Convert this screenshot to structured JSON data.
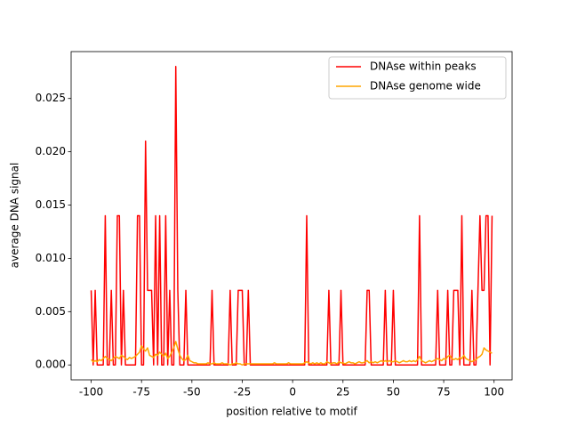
{
  "chart_data": {
    "type": "line",
    "xlabel": "position relative to motif",
    "ylabel": "average DNA signal",
    "x": [
      -100,
      -99,
      -98,
      -97,
      -96,
      -95,
      -94,
      -93,
      -92,
      -91,
      -90,
      -89,
      -88,
      -87,
      -86,
      -85,
      -84,
      -83,
      -82,
      -81,
      -80,
      -79,
      -78,
      -77,
      -76,
      -75,
      -74,
      -73,
      -72,
      -71,
      -70,
      -69,
      -68,
      -67,
      -66,
      -65,
      -64,
      -63,
      -62,
      -61,
      -60,
      -59,
      -58,
      -57,
      -56,
      -55,
      -54,
      -53,
      -52,
      -51,
      -50,
      -49,
      -48,
      -47,
      -46,
      -45,
      -44,
      -43,
      -42,
      -41,
      -40,
      -39,
      -38,
      -37,
      -36,
      -35,
      -34,
      -33,
      -32,
      -31,
      -30,
      -29,
      -28,
      -27,
      -26,
      -25,
      -24,
      -23,
      -22,
      -21,
      -20,
      -19,
      -18,
      -17,
      -16,
      -15,
      -14,
      -13,
      -12,
      -11,
      -10,
      -9,
      -8,
      -7,
      -6,
      -5,
      -4,
      -3,
      -2,
      -1,
      0,
      1,
      2,
      3,
      4,
      5,
      6,
      7,
      8,
      9,
      10,
      11,
      12,
      13,
      14,
      15,
      16,
      17,
      18,
      19,
      20,
      21,
      22,
      23,
      24,
      25,
      26,
      27,
      28,
      29,
      30,
      31,
      32,
      33,
      34,
      35,
      36,
      37,
      38,
      39,
      40,
      41,
      42,
      43,
      44,
      45,
      46,
      47,
      48,
      49,
      50,
      51,
      52,
      53,
      54,
      55,
      56,
      57,
      58,
      59,
      60,
      61,
      62,
      63,
      64,
      65,
      66,
      67,
      68,
      69,
      70,
      71,
      72,
      73,
      74,
      75,
      76,
      77,
      78,
      79,
      80,
      81,
      82,
      83,
      84,
      85,
      86,
      87,
      88,
      89,
      90,
      91,
      92,
      93,
      94,
      95,
      96,
      97,
      98,
      99
    ],
    "series": [
      {
        "name": "DNAse within peaks",
        "color": "#ff0000",
        "values": [
          0.007,
          0,
          0.007,
          0,
          0,
          0,
          0,
          0.014,
          0,
          0,
          0.007,
          0,
          0,
          0.014,
          0.014,
          0,
          0.007,
          0,
          0,
          0,
          0,
          0,
          0,
          0.014,
          0.014,
          0,
          0,
          0.021,
          0.007,
          0.007,
          0.007,
          0,
          0.014,
          0,
          0.014,
          0,
          0,
          0.014,
          0,
          0.007,
          0,
          0,
          0.028,
          0.007,
          0,
          0,
          0,
          0.007,
          0,
          0,
          0,
          0,
          0,
          0,
          0,
          0,
          0,
          0,
          0,
          0,
          0.007,
          0,
          0,
          0,
          0,
          0,
          0,
          0,
          0,
          0.007,
          0,
          0,
          0,
          0.007,
          0.007,
          0.007,
          0,
          0,
          0.007,
          0,
          0,
          0,
          0,
          0,
          0,
          0,
          0,
          0,
          0,
          0,
          0,
          0,
          0,
          0,
          0,
          0,
          0,
          0,
          0,
          0,
          0,
          0,
          0,
          0,
          0,
          0,
          0,
          0.014,
          0,
          0,
          0,
          0,
          0,
          0,
          0,
          0,
          0,
          0,
          0.007,
          0,
          0,
          0,
          0,
          0,
          0.007,
          0,
          0,
          0,
          0,
          0,
          0,
          0,
          0,
          0,
          0,
          0,
          0,
          0.007,
          0.007,
          0,
          0,
          0,
          0,
          0,
          0,
          0,
          0.007,
          0,
          0,
          0,
          0.007,
          0,
          0,
          0,
          0,
          0,
          0,
          0,
          0,
          0,
          0,
          0,
          0,
          0.014,
          0,
          0,
          0,
          0,
          0,
          0,
          0,
          0,
          0.007,
          0,
          0,
          0,
          0,
          0.007,
          0,
          0,
          0.007,
          0.007,
          0.007,
          0,
          0.014,
          0,
          0,
          0,
          0,
          0.007,
          0,
          0,
          0.007,
          0.014,
          0.007,
          0.007,
          0.014,
          0.014,
          0,
          0.014
        ]
      },
      {
        "name": "DNAse genome wide",
        "color": "#ffa500",
        "values": [
          0.0005,
          0.0003,
          0.0004,
          0.0003,
          0.0005,
          0.0004,
          0.0006,
          0.0008,
          0.0006,
          0.0005,
          0.0004,
          0.0006,
          0.0008,
          0.0007,
          0.0006,
          0.0009,
          0.0008,
          0.0006,
          0.0005,
          0.0007,
          0.0006,
          0.0007,
          0.0008,
          0.001,
          0.0012,
          0.0018,
          0.0015,
          0.0013,
          0.0016,
          0.0009,
          0.0008,
          0.0007,
          0.001,
          0.0009,
          0.0012,
          0.001,
          0.0008,
          0.0011,
          0.0006,
          0.0008,
          0.0012,
          0.0016,
          0.0022,
          0.0015,
          0.0009,
          0.0006,
          0.0004,
          0.0005,
          0.0009,
          0.0004,
          0.0003,
          0.0002,
          0.0002,
          0.0001,
          0.0001,
          0.0001,
          0.0001,
          0.0001,
          0.0002,
          0.0001,
          0.0001,
          0.0002,
          0.0001,
          0.0001,
          0.0001,
          0.0002,
          0.0001,
          0.0001,
          0.0001,
          0,
          0.0001,
          0.0001,
          0.0002,
          0.0001,
          0.0001,
          0,
          0.0001,
          0.0001,
          0.0001,
          0.0001,
          0.0001,
          0.0001,
          0.0001,
          0.0001,
          0.0001,
          0.0001,
          0.0001,
          0.0001,
          0.0001,
          0.0001,
          0.0001,
          0.0002,
          0.0001,
          0.0001,
          0.0001,
          0.0001,
          0.0001,
          0.0001,
          0.0002,
          0.0001,
          0.0001,
          0.0001,
          0.0001,
          0.0001,
          0.0001,
          0.0001,
          0.0002,
          0.0003,
          0.0002,
          0.0001,
          0.0002,
          0.0001,
          0.0002,
          0.0001,
          0.0002,
          0.0001,
          0.0001,
          0.0003,
          0.0002,
          0.0001,
          0.0002,
          0.0002,
          0.0001,
          0.0003,
          0.0002,
          0.0002,
          0.0001,
          0.0002,
          0.0003,
          0.0002,
          0.0002,
          0.0001,
          0.0002,
          0.0003,
          0.0002,
          0.0002,
          0.0003,
          0.0004,
          0.0002,
          0.0003,
          0.0002,
          0.0003,
          0.0002,
          0.0003,
          0.0004,
          0.0003,
          0.0004,
          0.0003,
          0.0004,
          0.0003,
          0.0003,
          0.0004,
          0.0003,
          0.0002,
          0.0003,
          0.0004,
          0.0003,
          0.0003,
          0.0004,
          0.0003,
          0.0004,
          0.0003,
          0.0005,
          0.0008,
          0.0004,
          0.0003,
          0.0002,
          0.0003,
          0.0004,
          0.0003,
          0.0004,
          0.0005,
          0.0006,
          0.0005,
          0.0004,
          0.0006,
          0.0005,
          0.0008,
          0.0009,
          0.0006,
          0.0005,
          0.0006,
          0.0005,
          0.0007,
          0.0006,
          0.0009,
          0.0006,
          0.0005,
          0.0004,
          0.0003,
          0.0004,
          0.0005,
          0.0007,
          0.0008,
          0.001,
          0.0016,
          0.0014,
          0.0013,
          0.0012,
          0.0011
        ]
      }
    ],
    "xlim": [
      -109.95,
      108.95
    ],
    "xticks": [
      -100,
      -75,
      -50,
      -25,
      0,
      25,
      50,
      75,
      100
    ],
    "ylim": [
      -0.0014,
      0.0294
    ],
    "yticks": [
      {
        "value": 0,
        "label": "0.000"
      },
      {
        "value": 0.005,
        "label": "0.005"
      },
      {
        "value": 0.01,
        "label": "0.010"
      },
      {
        "value": 0.015,
        "label": "0.015"
      },
      {
        "value": 0.02,
        "label": "0.020"
      },
      {
        "value": 0.025,
        "label": "0.025"
      }
    ],
    "legend": "upper right"
  }
}
